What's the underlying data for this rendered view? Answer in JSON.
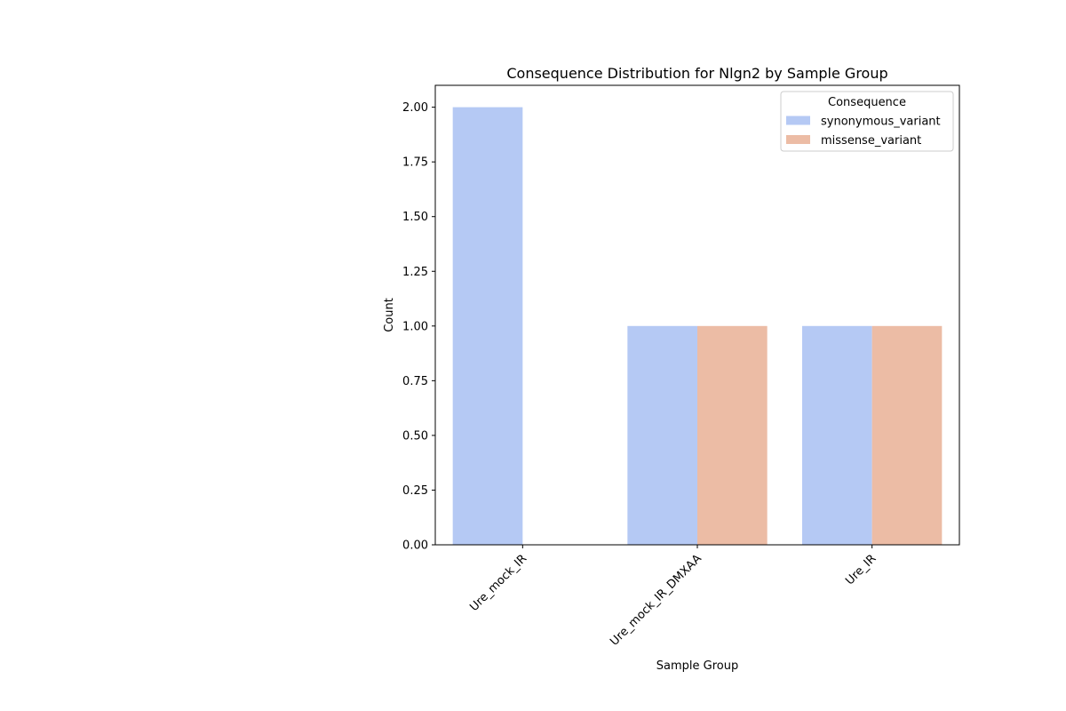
{
  "chart_data": {
    "type": "bar",
    "title": "Consequence Distribution for Nlgn2 by Sample Group",
    "xlabel": "Sample Group",
    "ylabel": "Count",
    "categories": [
      "Ure_mock_IR",
      "Ure_mock_IR_DMXAA",
      "Ure_IR"
    ],
    "series": [
      {
        "name": "synonymous_variant",
        "values": [
          2,
          1,
          1
        ],
        "color": "#b5c9f4"
      },
      {
        "name": "missense_variant",
        "values": [
          0,
          1,
          1
        ],
        "color": "#ecbca5"
      }
    ],
    "ylim": [
      0,
      2.1
    ],
    "yticks": [
      "0.00",
      "0.25",
      "0.50",
      "0.75",
      "1.00",
      "1.25",
      "1.50",
      "1.75",
      "2.00"
    ],
    "legend": {
      "title": "Consequence",
      "placement": "top-right"
    },
    "grid": false
  }
}
